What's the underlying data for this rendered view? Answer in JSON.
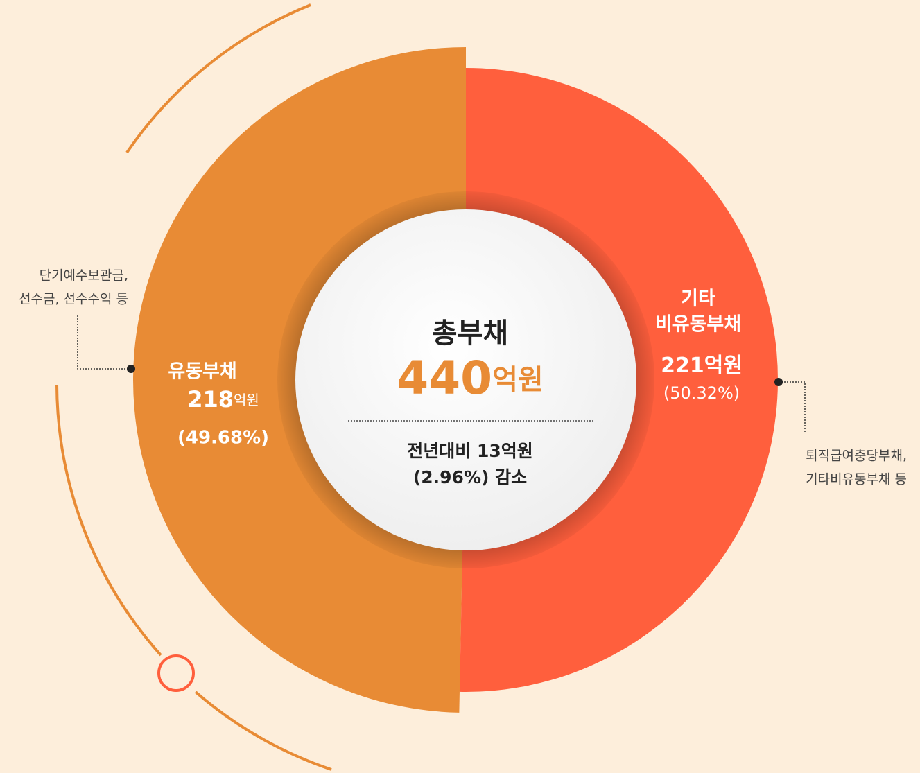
{
  "chart_data": {
    "type": "donut",
    "title": "총부채",
    "total": 440,
    "unit": "억원",
    "change_lines": [
      "전년대비 13억원",
      "(2.96%) 감소"
    ],
    "categories": [
      [
        "유동부채"
      ],
      [
        "기타",
        "비유동부채"
      ]
    ],
    "values": [
      49.68,
      50.32
    ],
    "value_labels": [
      "(49.68%)",
      "(50.32%)"
    ],
    "amounts": [
      218,
      221
    ],
    "colors": [
      "#e88b35",
      "#ff5f3d"
    ],
    "notes": [
      [
        "단기예수보관금,",
        "선수금, 선수수익 등"
      ],
      [
        "퇴직급여충당부채,",
        "기타비유동부채 등"
      ]
    ]
  }
}
